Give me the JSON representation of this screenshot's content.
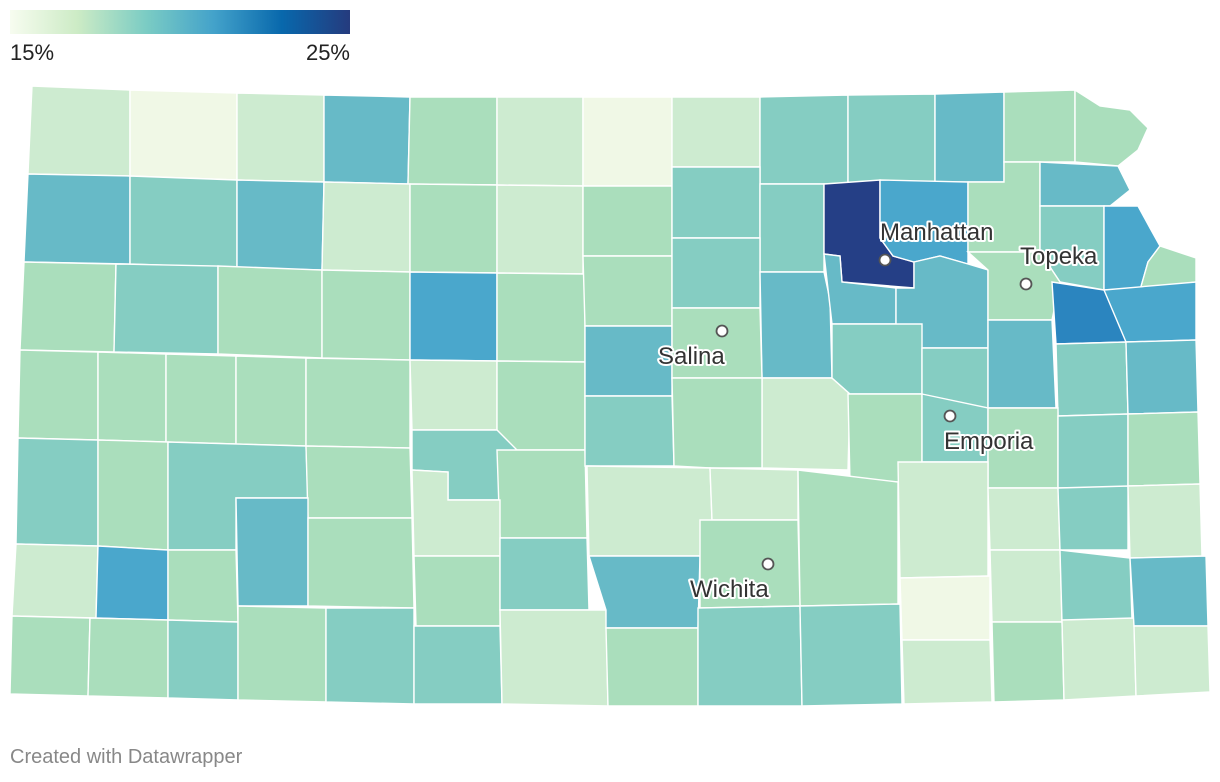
{
  "legend": {
    "min_label": "15%",
    "max_label": "25%",
    "colors": [
      "#f7fcf0",
      "#ccebc5",
      "#7bccc4",
      "#43a2ca",
      "#0868ac",
      "#253b7e"
    ]
  },
  "palette": {
    "c1": "#f0f8e6",
    "c2": "#cdebd0",
    "c3": "#aadebc",
    "c4": "#85cdc2",
    "c5": "#67bac7",
    "c6": "#4aa7cc",
    "c7": "#2b85bf",
    "c8": "#253f86"
  },
  "cities": [
    {
      "name": "Manhattan"
    },
    {
      "name": "Topeka"
    },
    {
      "name": "Salina"
    },
    {
      "name": "Emporia"
    },
    {
      "name": "Wichita"
    }
  ],
  "credit": "Created with Datawrapper"
}
